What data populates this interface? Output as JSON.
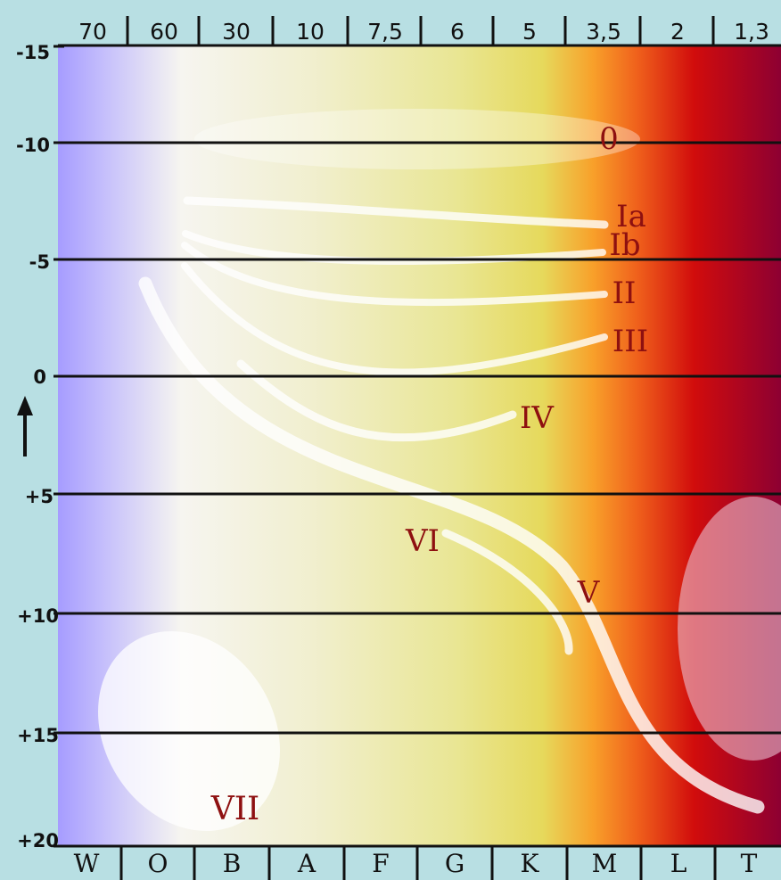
{
  "top_ticks": [
    "70",
    "60",
    "30",
    "10",
    "7,5",
    "6",
    "5",
    "3,5",
    "2",
    "1,3"
  ],
  "magnitude_ticks": [
    "-15",
    "-10",
    "-5",
    "0",
    "+5",
    "+10",
    "+15",
    "+20"
  ],
  "spectral_classes": [
    "W",
    "O",
    "B",
    "A",
    "F",
    "G",
    "K",
    "M",
    "L",
    "T"
  ],
  "luminosity_labels": {
    "zero": "0",
    "ia": "Ia",
    "ib": "Ib",
    "ii": "II",
    "iii": "III",
    "iv": "IV",
    "v": "V",
    "vi": "VI",
    "vii": "VII"
  },
  "colors": {
    "violet": "#a69cff",
    "white": "#f6f5f0",
    "yellow": "#e6e177",
    "orange": "#f8a02a",
    "red": "#d10c0c",
    "dark_red": "#8d0032",
    "label_red": "#8e1010",
    "background": "#b8dfe3"
  },
  "up_arrow_icon": "arrow-up-icon"
}
